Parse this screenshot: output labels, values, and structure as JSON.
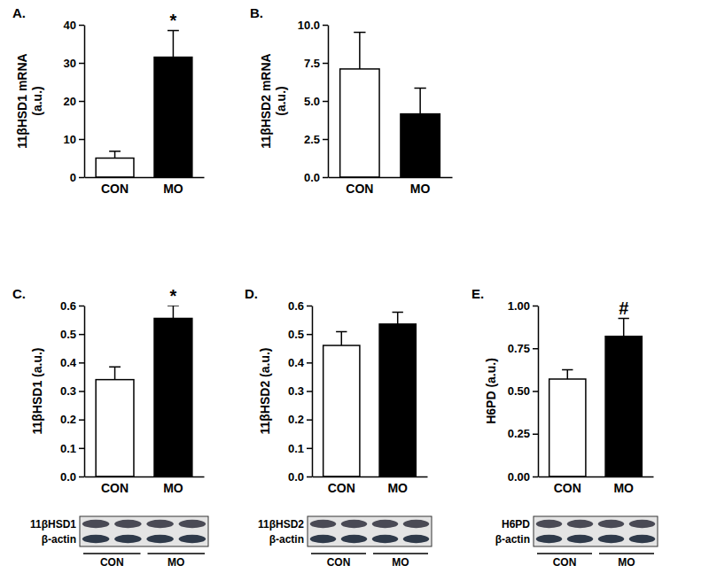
{
  "chart_data": [
    {
      "type": "bar",
      "panel": "A.",
      "ylabel_lines": [
        "11βHSD1 mRNA",
        "(a.u.)"
      ],
      "categories": [
        "CON",
        "MO"
      ],
      "values": [
        5.0,
        31.5
      ],
      "errors": [
        1.8,
        7.0
      ],
      "colors": [
        "#ffffff",
        "#000000"
      ],
      "significance": [
        null,
        "*"
      ],
      "ylim": [
        0,
        40
      ],
      "yticks": [
        0,
        10,
        20,
        30,
        40
      ]
    },
    {
      "type": "bar",
      "panel": "B.",
      "ylabel_lines": [
        "11βHSD2 mRNA",
        "(a.u.)"
      ],
      "categories": [
        "CON",
        "MO"
      ],
      "values": [
        7.1,
        4.15
      ],
      "errors": [
        2.4,
        1.7
      ],
      "colors": [
        "#ffffff",
        "#000000"
      ],
      "significance": [
        null,
        null
      ],
      "ylim": [
        0,
        10
      ],
      "yticks": [
        {
          "value": 0,
          "label": "0.0"
        },
        2.5,
        {
          "value": 5,
          "label": "5.0"
        },
        7.5,
        {
          "value": 10,
          "label": "10.0"
        }
      ]
    },
    {
      "type": "bar",
      "panel": "C.",
      "ylabel_lines": [
        "11βHSD1 (a.u.)"
      ],
      "categories": [
        "CON",
        "MO"
      ],
      "values": [
        0.34,
        0.555
      ],
      "errors": [
        0.045,
        0.045
      ],
      "colors": [
        "#ffffff",
        "#000000"
      ],
      "significance": [
        null,
        "*"
      ],
      "ylim": [
        0,
        0.6
      ],
      "yticks": [
        {
          "value": 0,
          "label": "0.0"
        },
        0.1,
        0.2,
        0.3,
        0.4,
        0.5,
        0.6
      ],
      "blot": {
        "bands": [
          "11βHSD1",
          "β-actin"
        ],
        "groups": [
          "CON",
          "MO"
        ]
      }
    },
    {
      "type": "bar",
      "panel": "D.",
      "ylabel_lines": [
        "11βHSD2 (a.u.)"
      ],
      "categories": [
        "CON",
        "MO"
      ],
      "values": [
        0.46,
        0.535
      ],
      "errors": [
        0.048,
        0.042
      ],
      "colors": [
        "#ffffff",
        "#000000"
      ],
      "significance": [
        null,
        null
      ],
      "ylim": [
        0,
        0.6
      ],
      "yticks": [
        {
          "value": 0,
          "label": "0.0"
        },
        0.1,
        0.2,
        0.3,
        0.4,
        0.5,
        0.6
      ],
      "blot": {
        "bands": [
          "11βHSD2",
          "β-actin"
        ],
        "groups": [
          "CON",
          "MO"
        ]
      }
    },
    {
      "type": "bar",
      "panel": "E.",
      "ylabel_lines": [
        "H6PD (a.u.)"
      ],
      "categories": [
        "CON",
        "MO"
      ],
      "values": [
        0.57,
        0.82
      ],
      "errors": [
        0.055,
        0.105
      ],
      "colors": [
        "#ffffff",
        "#000000"
      ],
      "significance": [
        null,
        "#"
      ],
      "ylim": [
        0,
        1
      ],
      "yticks": [
        {
          "value": 0,
          "label": "0.00"
        },
        0.25,
        {
          "value": 0.5,
          "label": "0.50"
        },
        0.75,
        {
          "value": 1,
          "label": "1.00"
        }
      ],
      "blot": {
        "bands": [
          "H6PD",
          "β-actin"
        ],
        "groups": [
          "CON",
          "MO"
        ]
      }
    }
  ]
}
